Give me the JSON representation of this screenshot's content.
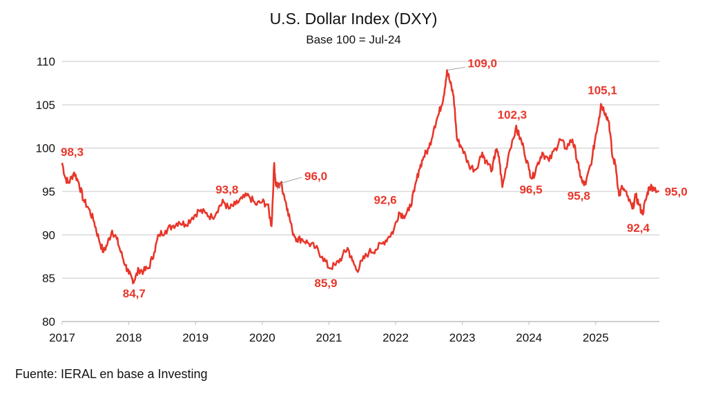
{
  "chart_data": {
    "type": "line",
    "title": "U.S. Dollar Index (DXY)",
    "subtitle": "Base 100 = Jul-24",
    "xlabel": "",
    "ylabel": "",
    "ylim": [
      80,
      110
    ],
    "xlim": [
      2017,
      2025.95
    ],
    "y_ticks": [
      "80",
      "85",
      "90",
      "95",
      "100",
      "105",
      "110"
    ],
    "x_ticks": [
      "2017",
      "2018",
      "2019",
      "2020",
      "2021",
      "2022",
      "2023",
      "2024",
      "2025"
    ],
    "grid": "horizontal",
    "color": "#e8362a",
    "series": [
      {
        "name": "DXY",
        "x": [
          2017.0,
          2017.05,
          2017.1,
          2017.18,
          2017.25,
          2017.32,
          2017.4,
          2017.48,
          2017.55,
          2017.62,
          2017.68,
          2017.75,
          2017.82,
          2017.88,
          2017.95,
          2018.0,
          2018.05,
          2018.08,
          2018.15,
          2018.22,
          2018.3,
          2018.38,
          2018.45,
          2018.55,
          2018.65,
          2018.75,
          2018.85,
          2018.95,
          2019.05,
          2019.15,
          2019.25,
          2019.35,
          2019.42,
          2019.5,
          2019.6,
          2019.7,
          2019.8,
          2019.9,
          2020.0,
          2020.08,
          2020.14,
          2020.18,
          2020.2,
          2020.23,
          2020.28,
          2020.33,
          2020.38,
          2020.45,
          2020.52,
          2020.6,
          2020.7,
          2020.8,
          2020.9,
          2021.0,
          2021.1,
          2021.2,
          2021.28,
          2021.35,
          2021.42,
          2021.5,
          2021.6,
          2021.7,
          2021.8,
          2021.9,
          2021.97,
          2022.05,
          2022.12,
          2022.2,
          2022.28,
          2022.35,
          2022.42,
          2022.5,
          2022.58,
          2022.65,
          2022.72,
          2022.77,
          2022.82,
          2022.87,
          2022.92,
          2023.0,
          2023.1,
          2023.2,
          2023.3,
          2023.35,
          2023.45,
          2023.5,
          2023.55,
          2023.6,
          2023.7,
          2023.8,
          2023.85,
          2023.92,
          2024.0,
          2024.05,
          2024.12,
          2024.2,
          2024.3,
          2024.4,
          2024.47,
          2024.55,
          2024.65,
          2024.7,
          2024.75,
          2024.8,
          2024.85,
          2024.95,
          2025.0,
          2025.05,
          2025.08,
          2025.15,
          2025.2,
          2025.25,
          2025.3,
          2025.35,
          2025.4,
          2025.47,
          2025.55,
          2025.6,
          2025.65,
          2025.7,
          2025.75,
          2025.8,
          2025.86,
          2025.95
        ],
        "values": [
          98.3,
          96.5,
          96,
          97.2,
          96,
          94,
          93,
          91.5,
          89.5,
          88,
          89,
          90.5,
          89.5,
          88,
          86.5,
          85.5,
          84.9,
          84.7,
          86,
          85.8,
          86.2,
          88,
          90,
          90.5,
          91,
          91.5,
          91.2,
          92,
          92.8,
          92.5,
          92,
          93.2,
          93.8,
          93,
          93.5,
          94.2,
          94.5,
          93.5,
          93.8,
          93.5,
          91,
          98.3,
          96,
          95.5,
          96,
          94.5,
          93,
          90.5,
          89.5,
          89.5,
          89,
          88.5,
          87.5,
          86.2,
          86.5,
          87.5,
          88.5,
          87,
          85.9,
          87,
          88,
          88.3,
          89,
          89.8,
          90.5,
          92.6,
          92.2,
          92.8,
          95,
          97.5,
          99,
          100,
          102.5,
          104,
          106,
          109,
          107.5,
          106,
          101,
          100,
          98,
          97.5,
          99.5,
          98.5,
          97.5,
          99.8,
          99,
          95.5,
          99.5,
          102.3,
          101.5,
          100,
          97.5,
          96.5,
          98,
          99.5,
          98.5,
          100,
          101,
          100,
          101,
          99.5,
          97.5,
          96,
          95.8,
          99,
          101.5,
          103.5,
          105.1,
          104,
          103,
          99,
          98,
          94.5,
          95.5,
          94.5,
          93,
          94.5,
          93.5,
          92.4,
          94,
          95.5,
          95.5,
          95
        ]
      }
    ],
    "annotations": [
      {
        "label": "98,3",
        "x": 2017.0,
        "value": 98.3
      },
      {
        "label": "84,7",
        "x": 2018.08,
        "value": 84.7
      },
      {
        "label": "93,8",
        "x": 2019.42,
        "value": 93.8
      },
      {
        "label": "96,0",
        "x": 2020.22,
        "value": 96.0
      },
      {
        "label": "85,9",
        "x": 2021.42,
        "value": 85.9
      },
      {
        "label": "92,6",
        "x": 2021.97,
        "value": 92.6
      },
      {
        "label": "109,0",
        "x": 2022.77,
        "value": 109.0
      },
      {
        "label": "102,3",
        "x": 2023.8,
        "value": 102.3
      },
      {
        "label": "96,5",
        "x": 2024.05,
        "value": 96.5
      },
      {
        "label": "95,8",
        "x": 2024.85,
        "value": 95.8
      },
      {
        "label": "105,1",
        "x": 2025.08,
        "value": 105.1
      },
      {
        "label": "92,4",
        "x": 2025.7,
        "value": 92.4
      },
      {
        "label": "95,0",
        "x": 2025.95,
        "value": 95.0
      }
    ]
  },
  "source": "Fuente: IERAL en base a Investing"
}
